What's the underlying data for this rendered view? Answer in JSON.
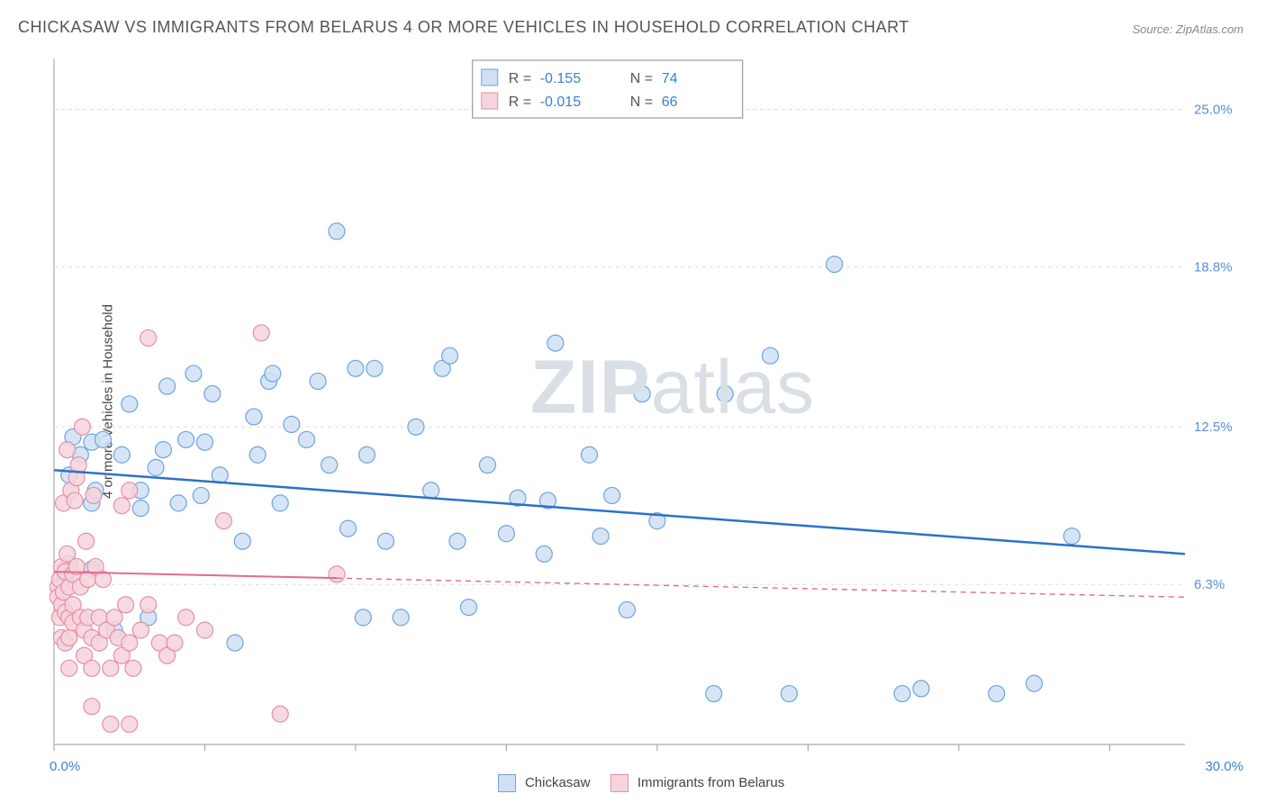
{
  "title": "CHICKASAW VS IMMIGRANTS FROM BELARUS 4 OR MORE VEHICLES IN HOUSEHOLD CORRELATION CHART",
  "source": "Source: ZipAtlas.com",
  "ylabel": "4 or more Vehicles in Household",
  "watermark_bold": "ZIP",
  "watermark_rest": "atlas",
  "chart": {
    "type": "scatter",
    "xlim": [
      0,
      30
    ],
    "ylim": [
      0,
      27
    ],
    "x_label_min": "0.0%",
    "x_label_max": "30.0%",
    "x_ticks": [
      0,
      4,
      8,
      12,
      16,
      20,
      24,
      28
    ],
    "y_gridlines": [
      {
        "y": 6.3,
        "label": "6.3%"
      },
      {
        "y": 12.5,
        "label": "12.5%"
      },
      {
        "y": 18.8,
        "label": "18.8%"
      },
      {
        "y": 25.0,
        "label": "25.0%"
      }
    ],
    "grid_color": "#dddddd",
    "axis_color": "#999999",
    "tick_label_color": "#5a8fd6",
    "background_color": "#ffffff",
    "marker_radius": 9,
    "marker_stroke_width": 1.2,
    "series": [
      {
        "name": "Chickasaw",
        "fill": "#cfe0f4",
        "stroke": "#6fa3dd",
        "R_label": "R = ",
        "R": "-0.155",
        "N_label": "N = ",
        "N": "74",
        "trend": {
          "x1": 0,
          "y1": 10.8,
          "x2": 30,
          "y2": 7.5,
          "solid_until_x": 30,
          "color": "#2b72c9",
          "width": 2.5
        },
        "points": [
          [
            0.3,
            6.9
          ],
          [
            0.3,
            6.6
          ],
          [
            0.4,
            7.1
          ],
          [
            0.4,
            10.6
          ],
          [
            0.5,
            12.1
          ],
          [
            0.7,
            11.4
          ],
          [
            1.0,
            6.9
          ],
          [
            1.0,
            9.5
          ],
          [
            1.0,
            11.9
          ],
          [
            1.1,
            10.0
          ],
          [
            1.3,
            12.0
          ],
          [
            1.6,
            4.5
          ],
          [
            1.8,
            11.4
          ],
          [
            2.0,
            13.4
          ],
          [
            2.3,
            10.0
          ],
          [
            2.3,
            9.3
          ],
          [
            2.5,
            5.0
          ],
          [
            2.7,
            10.9
          ],
          [
            2.9,
            11.6
          ],
          [
            3.0,
            14.1
          ],
          [
            3.3,
            9.5
          ],
          [
            3.5,
            12.0
          ],
          [
            3.7,
            14.6
          ],
          [
            3.9,
            9.8
          ],
          [
            4.0,
            11.9
          ],
          [
            4.2,
            13.8
          ],
          [
            4.4,
            10.6
          ],
          [
            4.8,
            4.0
          ],
          [
            5.0,
            8.0
          ],
          [
            5.3,
            12.9
          ],
          [
            5.4,
            11.4
          ],
          [
            5.7,
            14.3
          ],
          [
            5.8,
            14.6
          ],
          [
            6.0,
            9.5
          ],
          [
            6.3,
            12.6
          ],
          [
            6.7,
            12.0
          ],
          [
            7.0,
            14.3
          ],
          [
            7.3,
            11.0
          ],
          [
            7.5,
            20.2
          ],
          [
            7.8,
            8.5
          ],
          [
            8.0,
            14.8
          ],
          [
            8.2,
            5.0
          ],
          [
            8.3,
            11.4
          ],
          [
            8.5,
            14.8
          ],
          [
            8.8,
            8.0
          ],
          [
            9.2,
            5.0
          ],
          [
            9.6,
            12.5
          ],
          [
            10.0,
            10.0
          ],
          [
            10.3,
            14.8
          ],
          [
            10.5,
            15.3
          ],
          [
            10.7,
            8.0
          ],
          [
            11.0,
            5.4
          ],
          [
            11.5,
            11.0
          ],
          [
            12.0,
            8.3
          ],
          [
            12.3,
            9.7
          ],
          [
            13.0,
            7.5
          ],
          [
            13.1,
            9.6
          ],
          [
            13.3,
            15.8
          ],
          [
            14.2,
            11.4
          ],
          [
            14.5,
            8.2
          ],
          [
            14.8,
            9.8
          ],
          [
            15.2,
            5.3
          ],
          [
            15.6,
            13.8
          ],
          [
            16.0,
            8.8
          ],
          [
            17.5,
            2.0
          ],
          [
            17.8,
            13.8
          ],
          [
            19.0,
            15.3
          ],
          [
            19.5,
            2.0
          ],
          [
            20.7,
            18.9
          ],
          [
            22.5,
            2.0
          ],
          [
            23.0,
            2.2
          ],
          [
            25.0,
            2.0
          ],
          [
            26.0,
            2.4
          ],
          [
            27.0,
            8.2
          ]
        ]
      },
      {
        "name": "Immigrants from Belarus",
        "fill": "#f6d4dc",
        "stroke": "#e58fa5",
        "R_label": "R = ",
        "R": "-0.015",
        "N_label": "N = ",
        "N": "66",
        "trend": {
          "x1": 0,
          "y1": 6.8,
          "x2": 30,
          "y2": 5.8,
          "solid_until_x": 7.5,
          "color": "#e36b8a",
          "width": 2
        },
        "points": [
          [
            0.1,
            6.2
          ],
          [
            0.1,
            5.8
          ],
          [
            0.15,
            6.5
          ],
          [
            0.15,
            5.0
          ],
          [
            0.2,
            7.0
          ],
          [
            0.2,
            5.5
          ],
          [
            0.2,
            4.2
          ],
          [
            0.25,
            9.5
          ],
          [
            0.25,
            6.0
          ],
          [
            0.3,
            6.8
          ],
          [
            0.3,
            5.2
          ],
          [
            0.3,
            4.0
          ],
          [
            0.35,
            11.6
          ],
          [
            0.35,
            7.5
          ],
          [
            0.4,
            6.2
          ],
          [
            0.4,
            5.0
          ],
          [
            0.4,
            4.2
          ],
          [
            0.4,
            3.0
          ],
          [
            0.45,
            10.0
          ],
          [
            0.5,
            6.7
          ],
          [
            0.5,
            5.5
          ],
          [
            0.5,
            4.8
          ],
          [
            0.55,
            9.6
          ],
          [
            0.6,
            10.5
          ],
          [
            0.6,
            7.0
          ],
          [
            0.65,
            11.0
          ],
          [
            0.7,
            6.2
          ],
          [
            0.7,
            5.0
          ],
          [
            0.75,
            12.5
          ],
          [
            0.8,
            4.5
          ],
          [
            0.8,
            3.5
          ],
          [
            0.85,
            8.0
          ],
          [
            0.9,
            6.5
          ],
          [
            0.9,
            5.0
          ],
          [
            1.0,
            4.2
          ],
          [
            1.0,
            3.0
          ],
          [
            1.0,
            1.5
          ],
          [
            1.05,
            9.8
          ],
          [
            1.1,
            7.0
          ],
          [
            1.2,
            5.0
          ],
          [
            1.2,
            4.0
          ],
          [
            1.3,
            6.5
          ],
          [
            1.4,
            4.5
          ],
          [
            1.5,
            3.0
          ],
          [
            1.5,
            0.8
          ],
          [
            1.6,
            5.0
          ],
          [
            1.7,
            4.2
          ],
          [
            1.8,
            9.4
          ],
          [
            1.8,
            3.5
          ],
          [
            1.9,
            5.5
          ],
          [
            2.0,
            10.0
          ],
          [
            2.0,
            4.0
          ],
          [
            2.0,
            0.8
          ],
          [
            2.1,
            3.0
          ],
          [
            2.3,
            4.5
          ],
          [
            2.5,
            16.0
          ],
          [
            2.5,
            5.5
          ],
          [
            2.8,
            4.0
          ],
          [
            3.0,
            3.5
          ],
          [
            3.2,
            4.0
          ],
          [
            3.5,
            5.0
          ],
          [
            4.0,
            4.5
          ],
          [
            4.5,
            8.8
          ],
          [
            5.5,
            16.2
          ],
          [
            6.0,
            1.2
          ],
          [
            7.5,
            6.7
          ]
        ]
      }
    ]
  },
  "stats_legend": {
    "border_color": "#888888",
    "label_color": "#555555",
    "value_color": "#3b7fd6",
    "font_size": 16
  },
  "bottom_legend": {
    "items": [
      {
        "label": "Chickasaw",
        "fill": "#cfe0f4",
        "stroke": "#6fa3dd"
      },
      {
        "label": "Immigrants from Belarus",
        "fill": "#f6d4dc",
        "stroke": "#e58fa5"
      }
    ]
  }
}
